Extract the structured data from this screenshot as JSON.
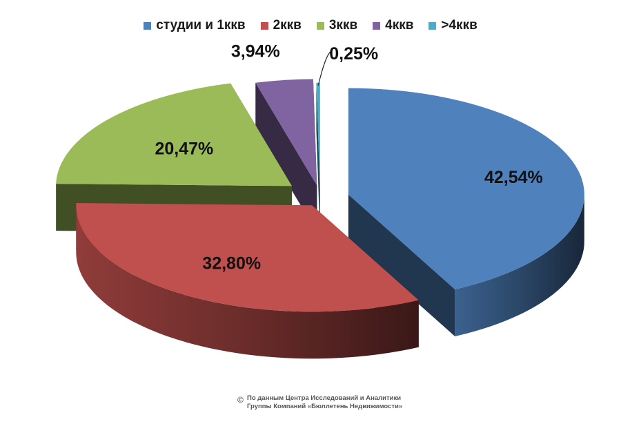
{
  "chart_data": {
    "type": "pie",
    "title": "",
    "categories": [
      "студии и 1ккв",
      "2ккв",
      "3ккв",
      "4ккв",
      ">4ккв"
    ],
    "values": [
      42.54,
      32.8,
      20.47,
      3.94,
      0.25
    ],
    "data_labels": [
      "42,54%",
      "32,80%",
      "20,47%",
      "3,94%",
      "0,25%"
    ],
    "colors": [
      "#4f81bd",
      "#c0504d",
      "#9bbb59",
      "#8064a2",
      "#4bacc6"
    ],
    "style": "3d-exploded",
    "legend_position": "top"
  },
  "legend": {
    "items": [
      {
        "label": "студии и 1ккв",
        "color": "#4f81bd"
      },
      {
        "label": "2ккв",
        "color": "#c0504d"
      },
      {
        "label": "3ккв",
        "color": "#9bbb59"
      },
      {
        "label": "4ккв",
        "color": "#8064a2"
      },
      {
        "label": ">4ккв",
        "color": "#4bacc6"
      }
    ]
  },
  "footer": {
    "symbol": "©",
    "line1": "По данным Центра Исследований и Аналитики",
    "line2": "Группы Компаний «Бюллетень Недвижимости»"
  }
}
